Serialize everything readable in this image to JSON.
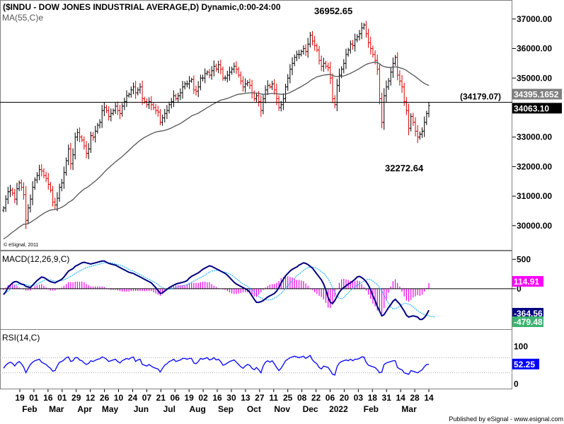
{
  "chart_data": [
    {
      "type": "ohlc",
      "title": "($INDU - DOW JONES INDUSTRIAL AVERAGE,D) Dynamic,0:00-24:00",
      "moving_average_label": "MA(55,C)e",
      "copyright": "© eSignal, 2011",
      "ylim": [
        29300,
        37500
      ],
      "y_ticks": [
        "30000.00",
        "31000.00",
        "32000.00",
        "33000.00",
        "34000.00",
        "35000.00",
        "36000.00",
        "37000.00"
      ],
      "high_label": "36952.65",
      "low_label": "32272.64",
      "horizontal_line": {
        "value": 34179.07,
        "label": "(34179.07)"
      },
      "price_tags": [
        {
          "value": 34395.1652,
          "label": "34395.1652",
          "color": "#808080"
        },
        {
          "value": 34063.1,
          "label": "34063.10",
          "color": "#000000"
        }
      ],
      "series": [
        {
          "name": "close",
          "values": [
            30600,
            30900,
            31150,
            31200,
            31100,
            30900,
            31250,
            31450,
            31300,
            31050,
            30180,
            30600,
            30900,
            31300,
            31550,
            31700,
            31900,
            31850,
            31700,
            31600,
            31400,
            31200,
            30800,
            30700,
            30930,
            31300,
            31450,
            31800,
            32200,
            32600,
            32100,
            32400,
            33000,
            33150,
            33000,
            32900,
            32700,
            32450,
            32600,
            33050,
            33000,
            33200,
            33400,
            33500,
            33900,
            34000,
            33900,
            33700,
            33800,
            33900,
            34050,
            33900,
            33800,
            34050,
            34200,
            34400,
            34450,
            34600,
            34700,
            34500,
            34600,
            34700,
            34300,
            34200,
            34100,
            34200,
            34100,
            34000,
            33900,
            33850,
            33500,
            33650,
            33800,
            33900,
            34100,
            34200,
            34400,
            34300,
            34400,
            34500,
            34700,
            34800,
            34800,
            34900,
            34950,
            34600,
            34550,
            34700,
            35000,
            35000,
            35150,
            35200,
            35100,
            35250,
            35400,
            35300,
            35450,
            35300,
            35000,
            35000,
            35100,
            35200,
            35300,
            35400,
            35300,
            35100,
            34900,
            34700,
            34800,
            34850,
            34750,
            34500,
            34300,
            34400,
            34200,
            33900,
            34300,
            34600,
            34750,
            34700,
            34800,
            34600,
            34300,
            34000,
            34100,
            34300,
            34700,
            35000,
            35300,
            35500,
            35700,
            35800,
            35800,
            35900,
            36000,
            35900,
            36150,
            36450,
            36250,
            36100,
            35950,
            35600,
            35400,
            35500,
            35400,
            35350,
            35000,
            34300,
            34100,
            34750,
            35100,
            35300,
            35500,
            35800,
            35950,
            36150,
            36100,
            36300,
            36400,
            36500,
            36700,
            36800,
            36500,
            36200,
            36000,
            35800,
            35600,
            35300,
            34300,
            33500,
            34400,
            34700,
            34900,
            35200,
            35500,
            35700,
            35100,
            34900,
            34700,
            34200,
            33900,
            33300,
            33700,
            33500,
            33200,
            33000,
            33100,
            33200,
            33500,
            33800,
            34063.1
          ],
          "color": "#000000"
        },
        {
          "name": "MA(55,C)e",
          "values": [
            29550,
            29600,
            29650,
            29720,
            29780,
            29830,
            29890,
            29950,
            30000,
            30050,
            30050,
            30070,
            30110,
            30160,
            30210,
            30260,
            30320,
            30370,
            30420,
            30460,
            30500,
            30530,
            30540,
            30550,
            30560,
            30590,
            30620,
            30670,
            30720,
            30790,
            30830,
            30880,
            30960,
            31040,
            31110,
            31180,
            31240,
            31280,
            31330,
            31390,
            31450,
            31510,
            31580,
            31650,
            31730,
            31810,
            31890,
            31960,
            32030,
            32090,
            32160,
            32220,
            32280,
            32340,
            32410,
            32480,
            32550,
            32620,
            32700,
            32760,
            32830,
            32890,
            32940,
            32990,
            33030,
            33070,
            33110,
            33140,
            33170,
            33190,
            33200,
            33210,
            33230,
            33250,
            33280,
            33310,
            33350,
            33390,
            33420,
            33460,
            33510,
            33560,
            33610,
            33660,
            33720,
            33750,
            33780,
            33810,
            33860,
            33900,
            33950,
            34000,
            34040,
            34090,
            34130,
            34170,
            34210,
            34250,
            34270,
            34290,
            34310,
            34340,
            34370,
            34400,
            34430,
            34450,
            34460,
            34470,
            34480,
            34490,
            34500,
            34500,
            34490,
            34490,
            34480,
            34460,
            34450,
            34450,
            34460,
            34470,
            34480,
            34480,
            34470,
            34460,
            34450,
            34450,
            34460,
            34480,
            34510,
            34550,
            34590,
            34630,
            34670,
            34710,
            34760,
            34800,
            34850,
            34910,
            34960,
            35000,
            35040,
            35060,
            35080,
            35100,
            35110,
            35120,
            35120,
            35090,
            35060,
            35050,
            35050,
            35060,
            35070,
            35100,
            35130,
            35160,
            35200,
            35240,
            35280,
            35320,
            35370,
            35420,
            35460,
            35490,
            35510,
            35530,
            35540,
            35530,
            35480,
            35420,
            35390,
            35370,
            35360,
            35360,
            35370,
            35380,
            35370,
            35350,
            35330,
            35300,
            35260,
            35200,
            35150,
            35100,
            35050,
            34990,
            34930,
            34870,
            34820,
            34780,
            34750
          ],
          "color": "#555555"
        }
      ]
    },
    {
      "type": "line",
      "title": "MACD(12,26,9,C)",
      "y_ticks": [
        "500",
        "0"
      ],
      "ylim": [
        -650,
        600
      ],
      "value_tags": [
        {
          "value": 114.91,
          "label": "114.91",
          "color": "#ff00ff"
        },
        {
          "value": -364.56,
          "label": "-364.56",
          "color": "#000080"
        },
        {
          "value": -479.48,
          "label": "-479.48",
          "color": "#3cb371"
        }
      ],
      "series": [
        {
          "name": "MACD",
          "color": "#000080",
          "values": [
            -100,
            -50,
            20,
            60,
            100,
            120,
            120,
            100,
            80,
            70,
            40,
            30,
            20,
            60,
            100,
            140,
            170,
            200,
            190,
            170,
            140,
            120,
            110,
            100,
            120,
            140,
            160,
            200,
            250,
            300,
            320,
            340,
            380,
            400,
            420,
            440,
            450,
            440,
            430,
            420,
            430,
            440,
            450,
            460,
            470,
            470,
            450,
            430,
            420,
            410,
            400,
            380,
            360,
            340,
            320,
            300,
            280,
            270,
            260,
            240,
            220,
            200,
            180,
            160,
            140,
            120,
            100,
            60,
            20,
            -30,
            -80,
            -70,
            -40,
            -10,
            20,
            40,
            60,
            80,
            90,
            100,
            110,
            120,
            140,
            180,
            210,
            230,
            250,
            270,
            300,
            330,
            350,
            370,
            390,
            380,
            360,
            340,
            320,
            300,
            280,
            260,
            230,
            190,
            150,
            110,
            80,
            60,
            40,
            20,
            0,
            -20,
            -60,
            -120,
            -180,
            -230,
            -230,
            -220,
            -200,
            -170,
            -140,
            -120,
            -100,
            -80,
            -40,
            20,
            100,
            160,
            220,
            260,
            300,
            330,
            350,
            370,
            400,
            420,
            440,
            430,
            410,
            380,
            350,
            300,
            250,
            200,
            150,
            80,
            -20,
            -150,
            -230,
            -250,
            -200,
            -130,
            -60,
            -10,
            20,
            50,
            80,
            100,
            130,
            160,
            200,
            210,
            190,
            160,
            120,
            60,
            -20,
            -120,
            -200,
            -300,
            -380,
            -460,
            -440,
            -380,
            -320,
            -270,
            -210,
            -180,
            -220,
            -260,
            -320,
            -380,
            -450,
            -480,
            -470,
            -460,
            -470,
            -480,
            -520,
            -520,
            -490,
            -440,
            -364.56
          ]
        },
        {
          "name": "Signal",
          "color": "#00aaff",
          "values": [
            -80,
            -70,
            -40,
            -10,
            20,
            50,
            70,
            80,
            80,
            80,
            70,
            60,
            50,
            50,
            60,
            80,
            100,
            120,
            140,
            150,
            150,
            150,
            140,
            130,
            130,
            130,
            140,
            150,
            170,
            190,
            210,
            230,
            260,
            280,
            300,
            320,
            340,
            360,
            370,
            380,
            390,
            400,
            410,
            420,
            430,
            440,
            440,
            440,
            440,
            430,
            420,
            410,
            400,
            390,
            370,
            350,
            330,
            310,
            300,
            280,
            260,
            240,
            220,
            200,
            180,
            160,
            140,
            120,
            100,
            70,
            40,
            20,
            0,
            -10,
            -10,
            0,
            10,
            20,
            30,
            40,
            50,
            60,
            70,
            90,
            110,
            130,
            150,
            170,
            190,
            210,
            230,
            260,
            280,
            300,
            310,
            310,
            310,
            300,
            290,
            280,
            270,
            250,
            230,
            200,
            170,
            140,
            110,
            80,
            60,
            40,
            10,
            -20,
            -50,
            -90,
            -130,
            -160,
            -180,
            -190,
            -190,
            -190,
            -180,
            -160,
            -140,
            -110,
            -80,
            -40,
            10,
            50,
            100,
            140,
            180,
            220,
            250,
            280,
            310,
            340,
            360,
            370,
            370,
            360,
            340,
            320,
            290,
            260,
            220,
            170,
            100,
            20,
            -60,
            -120,
            -160,
            -170,
            -150,
            -110,
            -70,
            -30,
            0,
            30,
            60,
            80,
            110,
            130,
            150,
            160,
            150,
            130,
            100,
            70,
            20,
            -40,
            -110,
            -180,
            -250,
            -310,
            -340,
            -340,
            -320,
            -300,
            -270,
            -250,
            -250,
            -260,
            -280,
            -310,
            -340,
            -370,
            -400,
            -420,
            -440,
            -450,
            -460,
            -470,
            -475,
            -479.48
          ]
        }
      ]
    },
    {
      "type": "line",
      "title": "RSI(14,C)",
      "y_ticks": [
        "100",
        "50",
        "0"
      ],
      "ylim": [
        -10,
        140
      ],
      "value_tags": [
        {
          "value": 52.25,
          "label": "52.25",
          "color": "#0000ff"
        }
      ],
      "series": [
        {
          "name": "RSI",
          "color": "#0000ff",
          "values": [
            42,
            50,
            55,
            58,
            55,
            48,
            56,
            60,
            54,
            45,
            30,
            42,
            52,
            58,
            62,
            64,
            66,
            58,
            55,
            52,
            46,
            42,
            34,
            36,
            48,
            58,
            60,
            64,
            70,
            72,
            60,
            62,
            70,
            70,
            64,
            62,
            56,
            52,
            55,
            62,
            60,
            63,
            66,
            67,
            72,
            70,
            66,
            60,
            62,
            64,
            66,
            60,
            56,
            62,
            65,
            68,
            66,
            70,
            72,
            60,
            64,
            66,
            52,
            50,
            48,
            52,
            48,
            44,
            42,
            40,
            32,
            42,
            50,
            54,
            60,
            62,
            66,
            60,
            62,
            64,
            68,
            68,
            66,
            68,
            68,
            56,
            54,
            60,
            68,
            66,
            68,
            70,
            64,
            66,
            70,
            64,
            66,
            60,
            50,
            52,
            56,
            60,
            62,
            64,
            58,
            52,
            46,
            42,
            48,
            52,
            50,
            42,
            38,
            44,
            38,
            30,
            48,
            58,
            62,
            58,
            62,
            54,
            44,
            36,
            42,
            52,
            62,
            66,
            70,
            72,
            74,
            72,
            70,
            72,
            74,
            68,
            72,
            76,
            64,
            58,
            54,
            44,
            40,
            48,
            46,
            44,
            36,
            26,
            24,
            46,
            56,
            60,
            62,
            64,
            62,
            66,
            62,
            66,
            66,
            68,
            72,
            72,
            58,
            50,
            48,
            46,
            44,
            38,
            30,
            32,
            52,
            56,
            58,
            60,
            62,
            62,
            44,
            40,
            38,
            30,
            28,
            26,
            36,
            34,
            32,
            30,
            34,
            38,
            46,
            52,
            52.25
          ]
        }
      ]
    }
  ],
  "x_axis": {
    "day_labels": [
      "19",
      "01",
      "16",
      "01",
      "29",
      "12",
      "26",
      "10",
      "24",
      "07",
      "21",
      "06",
      "19",
      "02",
      "16",
      "30",
      "13",
      "27",
      "11",
      "25",
      "08",
      "22",
      "06",
      "20",
      "03",
      "18",
      "31",
      "14",
      "28",
      "14"
    ],
    "month_labels": [
      "Feb",
      "Mar",
      "Apr",
      "May",
      "Jun",
      "Jul",
      "Aug",
      "Sep",
      "Oct",
      "Nov",
      "Dec",
      "2022",
      "Feb",
      "Mar"
    ]
  },
  "footer": "Published by eSignal - www.esignal.com"
}
